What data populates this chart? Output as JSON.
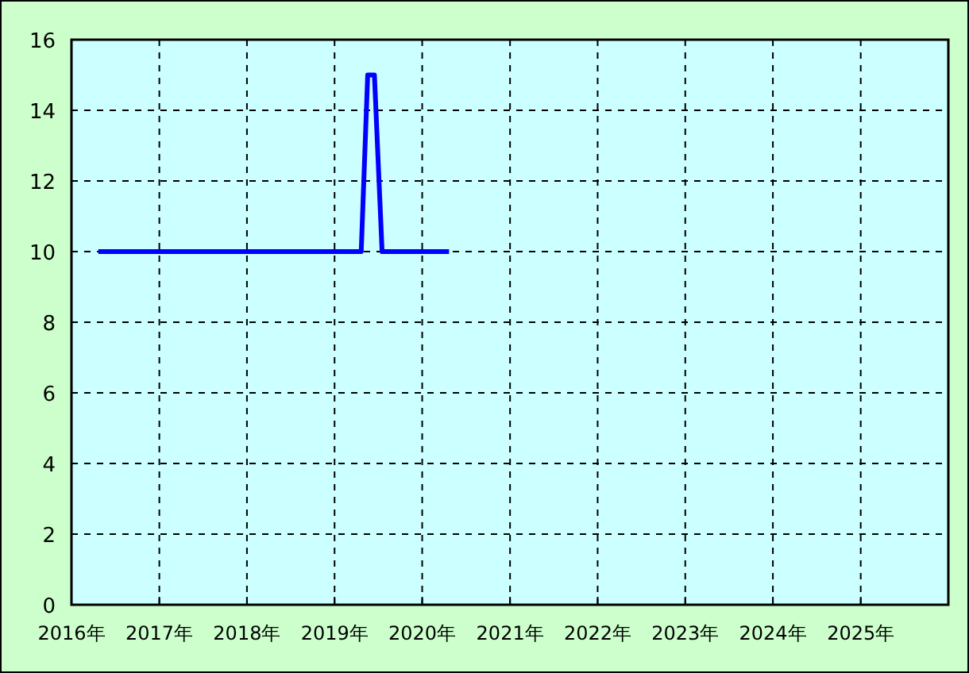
{
  "chart_data": {
    "type": "line",
    "x": [
      "2016-04-22",
      "2019-04-22",
      "2019-05-19",
      "2019-06-16",
      "2019-07-18",
      "2020-04-22"
    ],
    "series": [
      {
        "color": "#0000ff",
        "values": [
          10,
          10,
          15,
          15,
          10,
          10
        ]
      }
    ],
    "xlim": [
      "2016-01-01",
      "2026-01-01"
    ],
    "xticks": [
      {
        "value": "2016-01-01",
        "label": "2016年"
      },
      {
        "value": "2017-01-01",
        "label": "2017年"
      },
      {
        "value": "2018-01-01",
        "label": "2018年"
      },
      {
        "value": "2019-01-01",
        "label": "2019年"
      },
      {
        "value": "2020-01-01",
        "label": "2020年"
      },
      {
        "value": "2021-01-01",
        "label": "2021年"
      },
      {
        "value": "2022-01-01",
        "label": "2022年"
      },
      {
        "value": "2023-01-01",
        "label": "2023年"
      },
      {
        "value": "2024-01-01",
        "label": "2024年"
      },
      {
        "value": "2025-01-01",
        "label": "2025年"
      }
    ],
    "ylim": [
      0,
      16
    ],
    "yticks": [
      0,
      2,
      4,
      6,
      8,
      10,
      12,
      14,
      16
    ],
    "grid": true,
    "marker": "none",
    "line_style": "solid"
  }
}
